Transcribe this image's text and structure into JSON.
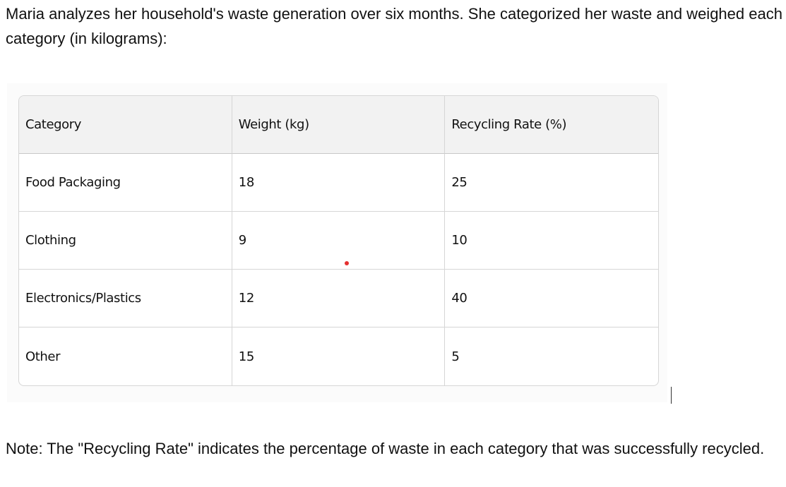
{
  "intro": "Maria analyzes her household's waste generation over six months. She categorized her waste and weighed each category (in kilograms):",
  "table": {
    "header": [
      "Category",
      "Weight (kg)",
      "Recycling Rate (%)"
    ],
    "rows": [
      [
        "Food Packaging",
        18,
        25
      ],
      [
        "Clothing",
        9,
        10
      ],
      [
        "Electronics/Plastics",
        12,
        40
      ],
      [
        "Other",
        15,
        5
      ]
    ]
  },
  "note": "Note: The \"Recycling Rate\" indicates the percentage of waste in each category that was successfully recycled."
}
